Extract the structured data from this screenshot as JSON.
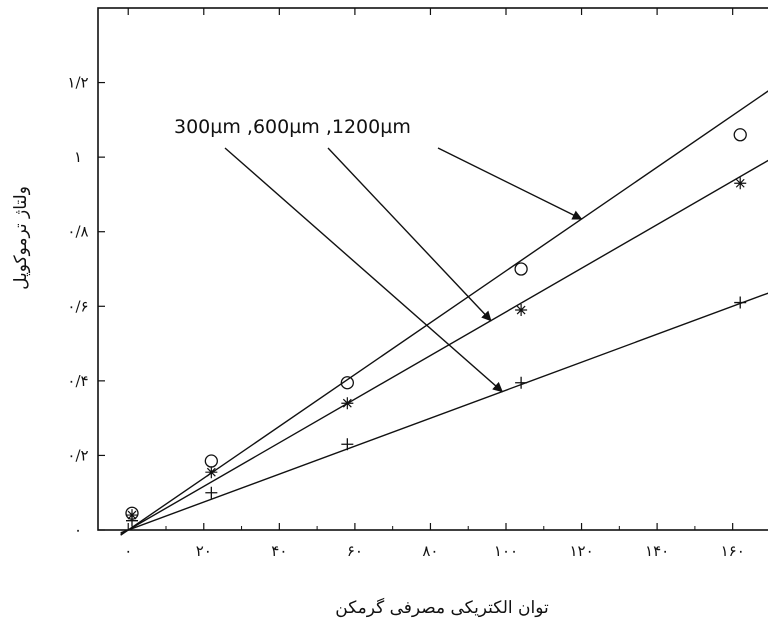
{
  "chart_data": {
    "type": "line",
    "xlabel": "توان الکتریکی مصرفی گرمکن",
    "ylabel": "ولتاژ ترموکوپل",
    "xlim": [
      -8,
      172
    ],
    "ylim": [
      0,
      1.4
    ],
    "x_ticks": [
      {
        "value": 0,
        "label": "۰"
      },
      {
        "value": 20,
        "label": "۲۰"
      },
      {
        "value": 40,
        "label": "۴۰"
      },
      {
        "value": 60,
        "label": "۶۰"
      },
      {
        "value": 80,
        "label": "۸۰"
      },
      {
        "value": 100,
        "label": "۱۰۰"
      },
      {
        "value": 120,
        "label": "۱۲۰"
      },
      {
        "value": 140,
        "label": "۱۴۰"
      },
      {
        "value": 160,
        "label": "۱۶۰"
      }
    ],
    "y_ticks": [
      {
        "value": 0,
        "label": "۰"
      },
      {
        "value": 0.2,
        "label": "۰/۲"
      },
      {
        "value": 0.4,
        "label": "۰/۴"
      },
      {
        "value": 0.6,
        "label": "۰/۶"
      },
      {
        "value": 0.8,
        "label": "۰/۸"
      },
      {
        "value": 1.0,
        "label": "۱"
      },
      {
        "value": 1.2,
        "label": "۱/۲"
      }
    ],
    "annotation": "300µm ,600µm ,1200µm",
    "series": [
      {
        "marker": "circle",
        "slope": 0.00695,
        "intercept": 0.0,
        "x": [
          1,
          22,
          58,
          104,
          162
        ],
        "y": [
          0.045,
          0.185,
          0.395,
          0.7,
          1.06
        ]
      },
      {
        "marker": "star",
        "slope": 0.00585,
        "intercept": 0.0,
        "x": [
          1,
          22,
          58,
          104,
          162
        ],
        "y": [
          0.04,
          0.155,
          0.34,
          0.59,
          0.93
        ]
      },
      {
        "marker": "plus",
        "slope": 0.00375,
        "intercept": 0.0,
        "x": [
          1,
          22,
          58,
          104,
          162
        ],
        "y": [
          0.025,
          0.1,
          0.23,
          0.395,
          0.61
        ]
      }
    ]
  }
}
